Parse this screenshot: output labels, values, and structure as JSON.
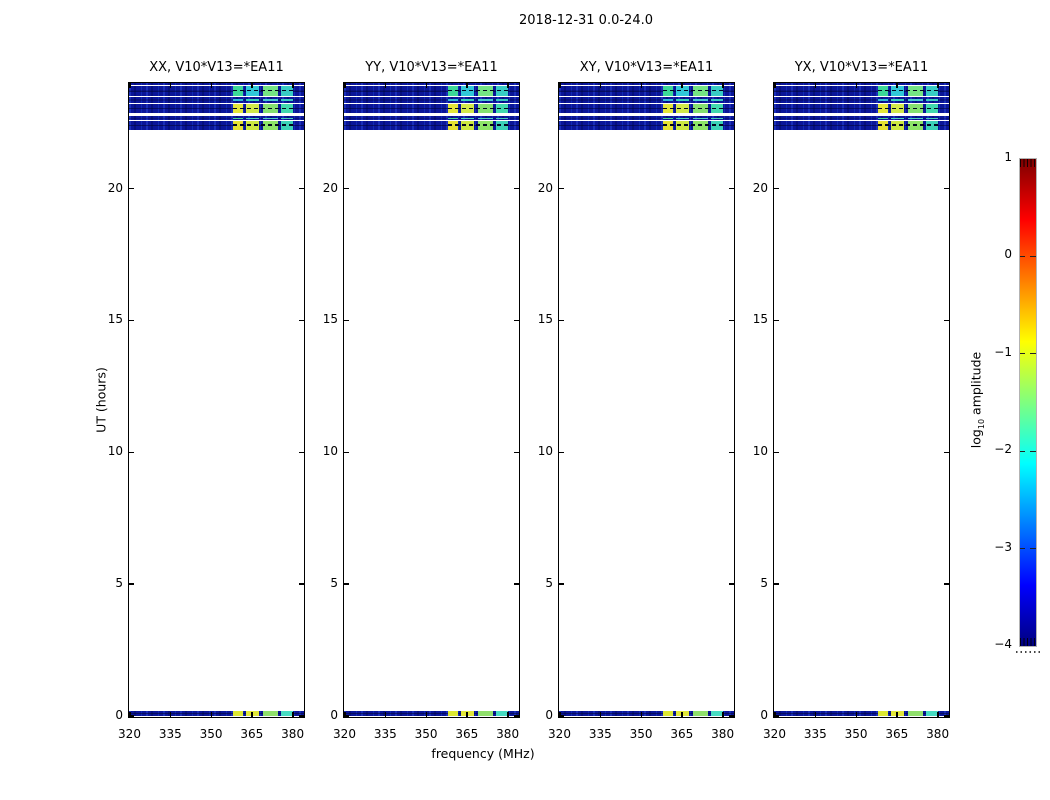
{
  "title": "2018-12-31 0.0-24.0",
  "xlabel": "frequency (MHz)",
  "ylabel": "UT (hours)",
  "panels": [
    {
      "title": "XX, V10*V13=*EA11"
    },
    {
      "title": "YY, V10*V13=*EA11"
    },
    {
      "title": "XY, V10*V13=*EA11"
    },
    {
      "title": "YX, V10*V13=*EA11"
    }
  ],
  "colorbar": {
    "label": {
      "prefix": "log",
      "sub": "10",
      "suffix": " amplitude"
    },
    "tick_labels": [
      "1",
      "0",
      "−1",
      "−2",
      "−3",
      "−4"
    ],
    "gradient": [
      "#7f0000",
      "#ff0000",
      "#ff7f00",
      "#ffff00",
      "#7fff7f",
      "#00ffff",
      "#007fff",
      "#0000ff",
      "#00007f"
    ]
  },
  "colors": {
    "background": "#ffffff",
    "axis": "#000000",
    "low_fill": "#0a1598",
    "midline": "#01051e",
    "colorbar_border": "#b3b3b3"
  },
  "chart_data": {
    "type": "heatmap",
    "title": "2018-12-31 0.0-24.0",
    "xlabel": "frequency (MHz)",
    "ylabel": "UT (hours)",
    "x_range_mhz": [
      320,
      384
    ],
    "x_ticks_mhz": [
      320,
      335,
      350,
      365,
      380
    ],
    "y_range_hours": [
      0,
      24
    ],
    "y_ticks_hours": [
      0,
      5,
      10,
      15,
      20
    ],
    "value_scale": "log10 amplitude",
    "value_range": [
      -4,
      1
    ],
    "colormap": "jet",
    "panel_titles": [
      "XX, V10*V13=*EA11",
      "YY, V10*V13=*EA11",
      "XY, V10*V13=*EA11",
      "YX, V10*V13=*EA11"
    ],
    "pattern_note": "All four correlation panels show the same occupancy: scans only near UT 22.2-24.0 and UT 0.0-0.2, rest of day blank. In each scan 320-358 MHz is low amplitude (dark blue, noisy ~10^-3.5); 358-380 MHz contains four brighter channel blocks; 380-384 MHz low again.",
    "low_zone_mhz": [
      320,
      358.4
    ],
    "low_zone_log10_amp": -3.5,
    "block_freqs_mhz": [
      [
        358.4,
        361.9
      ],
      [
        362.9,
        368.0
      ],
      [
        369.2,
        374.7
      ],
      [
        375.8,
        380.2
      ]
    ],
    "stripes": [
      {
        "ut": [
          23.91,
          24.0
        ],
        "style": "solid",
        "approx_log10_amp": -3.6,
        "block_colors": [],
        "block_log10_amp": [],
        "midline": false
      },
      {
        "ut": [
          23.5,
          23.9
        ],
        "style": "blocks",
        "approx_log10_amp": -3.5,
        "block_colors": [
          "#3cd898",
          "#30c8d8",
          "#74e484",
          "#38ccc4"
        ],
        "block_log10_amp": [
          -1.9,
          -2.3,
          -1.6,
          -2.1
        ],
        "midline": true
      },
      {
        "ut": [
          23.25,
          23.47
        ],
        "style": "dashes",
        "approx_log10_amp": -3.6,
        "block_colors": [
          "#30b8d8",
          "#38d0b8",
          "#48c8d0",
          "#38c8c0"
        ],
        "block_log10_amp": [
          -2.4,
          -2.3,
          -2.3,
          -2.3
        ],
        "midline": false
      },
      {
        "ut": [
          22.85,
          23.19
        ],
        "style": "blocks",
        "approx_log10_amp": -3.5,
        "block_colors": [
          "#e4e63a",
          "#d2e84a",
          "#86e070",
          "#42d8ae"
        ],
        "block_log10_amp": [
          -1.1,
          -1.3,
          -1.7,
          -2.1
        ],
        "midline": true
      },
      {
        "ut": [
          22.6,
          22.74
        ],
        "style": "dashes",
        "approx_log10_amp": -3.6,
        "block_colors": [
          "#44d494",
          "#4cd4bc",
          "#50d0c0",
          "#48ccb8"
        ],
        "block_log10_amp": [
          -2.0,
          -2.1,
          -2.1,
          -2.1
        ],
        "midline": false
      },
      {
        "ut": [
          22.23,
          22.57
        ],
        "style": "blocks",
        "approx_log10_amp": -3.5,
        "block_colors": [
          "#e6e032",
          "#cce840",
          "#8ee468",
          "#3cd2b6"
        ],
        "block_log10_amp": [
          -1.1,
          -1.4,
          -1.6,
          -2.1
        ],
        "midline": true
      },
      {
        "ut": [
          0.0,
          0.19
        ],
        "style": "blocks",
        "approx_log10_amp": -3.5,
        "block_colors": [
          "#dde832",
          "#e2e83a",
          "#90e06c",
          "#46dcc2"
        ],
        "block_log10_amp": [
          -1.1,
          -1.2,
          -1.6,
          -2.0
        ],
        "midline": false
      }
    ]
  }
}
